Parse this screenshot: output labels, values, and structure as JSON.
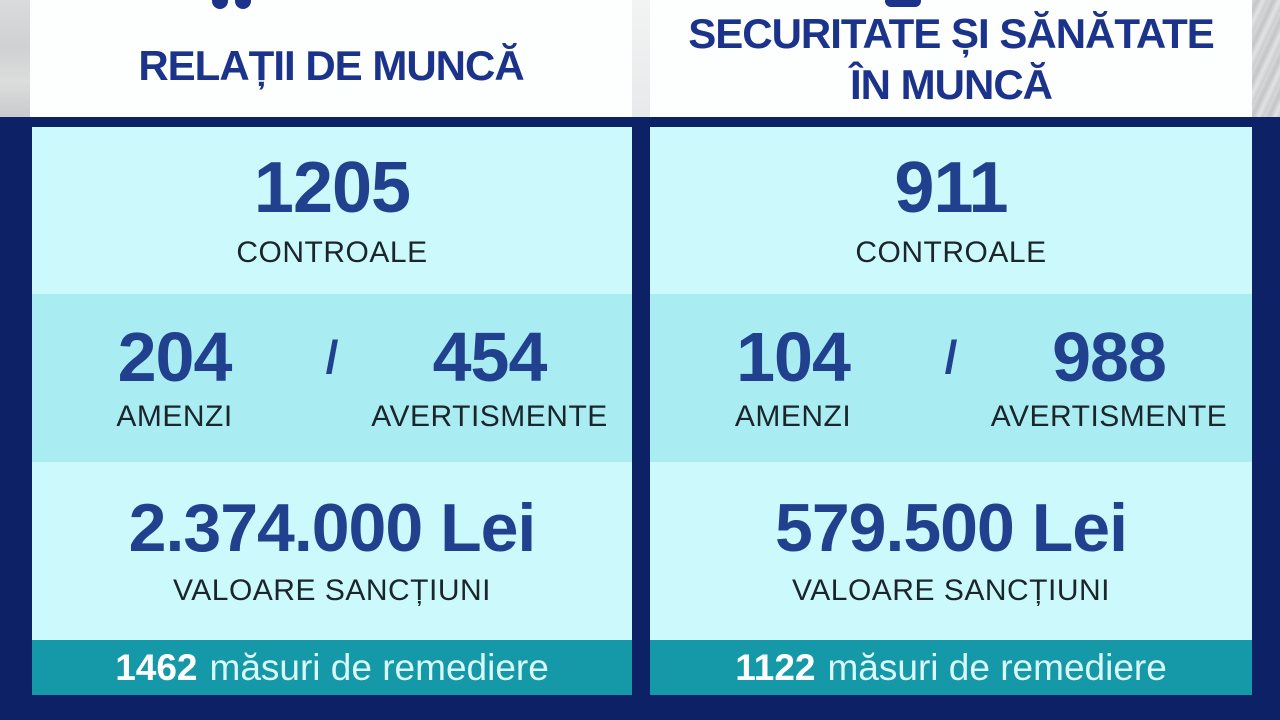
{
  "columns": [
    {
      "title_lines": [
        "RELAȚII DE MUNCĂ"
      ],
      "controale": {
        "value": "1205",
        "label": "CONTROALE"
      },
      "amenzi": {
        "value": "204",
        "label": "AMENZI"
      },
      "separator": "/",
      "avertismente": {
        "value": "454",
        "label": "AVERTISMENTE"
      },
      "sanctiuni": {
        "value": "2.374.000 Lei",
        "label": "VALOARE SANCȚIUNI"
      },
      "remediere": {
        "value": "1462",
        "label": "măsuri de remediere"
      }
    },
    {
      "title_lines": [
        "SECURITATE ȘI SĂNĂTATE",
        "ÎN MUNCĂ"
      ],
      "controale": {
        "value": "911",
        "label": "CONTROALE"
      },
      "amenzi": {
        "value": "104",
        "label": "AMENZI"
      },
      "separator": "/",
      "avertismente": {
        "value": "988",
        "label": "AVERTISMENTE"
      },
      "sanctiuni": {
        "value": "579.500 Lei",
        "label": "VALOARE SANCȚIUNI"
      },
      "remediere": {
        "value": "1122",
        "label": "măsuri de remediere"
      }
    }
  ],
  "colors": {
    "background_navy": "#0c2166",
    "panel_light_cyan": "#ccf9fb",
    "panel_mid_cyan": "#a9edf3",
    "teal_bar": "#1598a8",
    "title_blue": "#1b338a",
    "number_blue": "#21418e",
    "label_dark": "#1a252c",
    "header_white": "#fdfefe",
    "backdrop_gray": "#d2d4d5"
  },
  "chart_data": {
    "type": "table",
    "title": "Statistici controale inspecția muncii",
    "columns": [
      "RELAȚII DE MUNCĂ",
      "SECURITATE ȘI SĂNĂTATE ÎN MUNCĂ"
    ],
    "rows": [
      {
        "metric": "CONTROALE",
        "values": [
          1205,
          911
        ]
      },
      {
        "metric": "AMENZI",
        "values": [
          204,
          104
        ]
      },
      {
        "metric": "AVERTISMENTE",
        "values": [
          454,
          988
        ]
      },
      {
        "metric": "VALOARE SANCȚIUNI (Lei)",
        "values": [
          "2.374.000",
          "579.500"
        ]
      },
      {
        "metric": "măsuri de remediere",
        "values": [
          1462,
          1122
        ]
      }
    ]
  }
}
